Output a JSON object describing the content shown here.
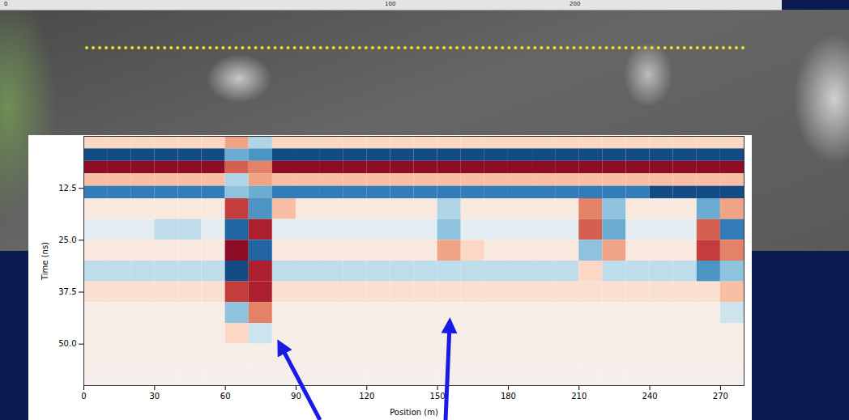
{
  "chart_data": {
    "type": "heatmap",
    "xlabel": "Position (m)",
    "ylabel": "Time (ns)",
    "xlim": [
      0,
      280
    ],
    "ylim": [
      0,
      60
    ],
    "xticks": [
      0,
      30,
      60,
      90,
      120,
      150,
      180,
      210,
      240,
      270
    ],
    "yticks": [
      12.5,
      {
        "value": 25,
        "label": "25.0"
      },
      37.5,
      {
        "value": 50,
        "label": "50.0"
      }
    ],
    "x_edges": [
      0,
      10,
      20,
      30,
      40,
      50,
      60,
      70,
      80,
      90,
      100,
      110,
      120,
      130,
      140,
      150,
      160,
      170,
      180,
      190,
      200,
      210,
      220,
      230,
      240,
      250,
      260,
      270,
      280
    ],
    "y_edges": [
      0,
      3,
      6,
      9,
      12,
      15,
      20,
      25,
      30,
      35,
      40,
      45,
      50,
      55,
      60
    ],
    "color_range": [
      -1,
      1
    ],
    "cells": [
      [
        0.2,
        0.2,
        0.2,
        0.2,
        0.2,
        0.2,
        0.4,
        -0.3,
        0.2,
        0.2,
        0.2,
        0.2,
        0.2,
        0.2,
        0.2,
        0.2,
        0.2,
        0.2,
        0.2,
        0.2,
        0.2,
        0.2,
        0.2,
        0.2,
        0.2,
        0.2,
        0.2,
        0.2
      ],
      [
        -0.9,
        -0.9,
        -0.9,
        -0.9,
        -0.9,
        -0.9,
        -0.5,
        -0.6,
        -0.9,
        -0.9,
        -0.9,
        -0.9,
        -0.9,
        -0.9,
        -0.9,
        -0.9,
        -0.9,
        -0.9,
        -0.9,
        -0.9,
        -0.9,
        -0.9,
        -0.9,
        -0.9,
        -0.9,
        -0.9,
        -0.9,
        -0.9
      ],
      [
        0.9,
        0.9,
        0.9,
        0.9,
        0.9,
        0.9,
        0.6,
        0.5,
        0.9,
        0.9,
        0.9,
        0.9,
        0.9,
        0.9,
        0.9,
        0.9,
        0.9,
        0.9,
        0.9,
        0.9,
        0.9,
        0.9,
        0.9,
        0.9,
        0.9,
        0.9,
        0.9,
        0.9
      ],
      [
        0.3,
        0.3,
        0.3,
        0.3,
        0.3,
        0.3,
        -0.3,
        0.4,
        0.3,
        0.3,
        0.3,
        0.3,
        0.3,
        0.3,
        0.3,
        0.3,
        0.3,
        0.3,
        0.3,
        0.3,
        0.3,
        0.3,
        0.3,
        0.3,
        0.3,
        0.3,
        0.3,
        0.3
      ],
      [
        -0.7,
        -0.7,
        -0.7,
        -0.7,
        -0.7,
        -0.7,
        -0.4,
        -0.5,
        -0.7,
        -0.7,
        -0.7,
        -0.7,
        -0.7,
        -0.7,
        -0.7,
        -0.7,
        -0.7,
        -0.7,
        -0.7,
        -0.7,
        -0.7,
        -0.7,
        -0.7,
        -0.7,
        -0.9,
        -0.9,
        -0.9,
        -0.9
      ],
      [
        0.1,
        0.1,
        0.1,
        0.1,
        0.1,
        0.1,
        0.7,
        -0.6,
        0.3,
        0.1,
        0.1,
        0.1,
        0.1,
        0.1,
        0.1,
        -0.3,
        0.1,
        0.1,
        0.1,
        0.1,
        0.1,
        0.5,
        -0.4,
        0.1,
        0.1,
        0.1,
        -0.5,
        0.4
      ],
      [
        -0.1,
        -0.1,
        -0.1,
        -0.25,
        -0.25,
        -0.1,
        -0.8,
        0.8,
        -0.1,
        -0.1,
        -0.1,
        -0.1,
        -0.1,
        -0.1,
        -0.1,
        -0.4,
        -0.1,
        -0.1,
        -0.1,
        -0.1,
        -0.1,
        0.6,
        -0.5,
        -0.1,
        -0.1,
        -0.1,
        0.6,
        -0.7
      ],
      [
        0.1,
        0.1,
        0.1,
        0.1,
        0.1,
        0.1,
        0.9,
        -0.8,
        0.1,
        0.1,
        0.1,
        0.1,
        0.1,
        0.1,
        0.1,
        0.4,
        0.2,
        0.1,
        0.1,
        0.1,
        0.1,
        -0.4,
        0.4,
        0.1,
        0.1,
        0.1,
        0.7,
        0.5
      ],
      [
        -0.25,
        -0.25,
        -0.25,
        -0.25,
        -0.25,
        -0.25,
        -0.9,
        0.8,
        -0.25,
        -0.25,
        -0.25,
        -0.25,
        -0.25,
        -0.25,
        -0.25,
        -0.25,
        -0.25,
        -0.25,
        -0.25,
        -0.25,
        -0.25,
        0.2,
        -0.25,
        -0.25,
        -0.25,
        -0.25,
        -0.6,
        -0.4
      ],
      [
        0.15,
        0.15,
        0.15,
        0.15,
        0.15,
        0.15,
        0.7,
        0.8,
        0.15,
        0.15,
        0.15,
        0.15,
        0.15,
        0.15,
        0.15,
        0.15,
        0.15,
        0.15,
        0.15,
        0.15,
        0.15,
        0.15,
        0.15,
        0.15,
        0.15,
        0.15,
        0.15,
        0.3
      ],
      [
        0.05,
        0.05,
        0.05,
        0.05,
        0.05,
        0.05,
        -0.4,
        0.5,
        0.05,
        0.05,
        0.05,
        0.05,
        0.05,
        0.05,
        0.05,
        0.05,
        0.05,
        0.05,
        0.05,
        0.05,
        0.05,
        0.05,
        0.05,
        0.05,
        0.05,
        0.05,
        0.05,
        -0.2
      ],
      [
        0.05,
        0.05,
        0.05,
        0.05,
        0.05,
        0.05,
        0.2,
        -0.2,
        0.05,
        0.05,
        0.05,
        0.05,
        0.05,
        0.05,
        0.05,
        0.05,
        0.05,
        0.05,
        0.05,
        0.05,
        0.05,
        0.05,
        0.05,
        0.05,
        0.05,
        0.05,
        0.05,
        0.05
      ],
      [
        0.05,
        0.05,
        0.05,
        0.05,
        0.05,
        0.05,
        0.05,
        0.05,
        0.05,
        0.05,
        0.05,
        0.05,
        0.05,
        0.05,
        0.05,
        0.05,
        0.05,
        0.05,
        0.05,
        0.05,
        0.05,
        0.05,
        0.05,
        0.05,
        0.05,
        0.05,
        0.05,
        0.05
      ],
      [
        0.03,
        0.03,
        0.03,
        0.03,
        0.03,
        0.03,
        0.03,
        0.03,
        0.03,
        0.03,
        0.03,
        0.03,
        0.03,
        0.03,
        0.03,
        0.03,
        0.03,
        0.03,
        0.03,
        0.03,
        0.03,
        0.03,
        0.03,
        0.03,
        0.03,
        0.03,
        0.03,
        0.03
      ]
    ],
    "scale_bar_labels": [
      "0",
      "100",
      "200"
    ]
  }
}
